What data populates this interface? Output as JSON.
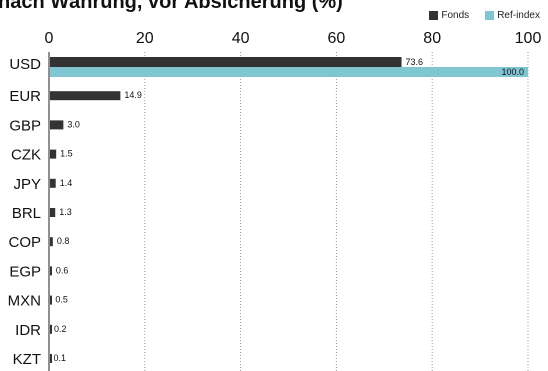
{
  "title": "nach Währung, vor Absicherung (%)",
  "colors": {
    "fonds": "#333333",
    "ref": "#7fc6d2",
    "grid": "#999999"
  },
  "chart_data": {
    "type": "bar",
    "orientation": "horizontal",
    "title": "nach Währung, vor Absicherung (%)",
    "xlim": [
      0,
      100
    ],
    "xticks": [
      0,
      20,
      40,
      60,
      80,
      100
    ],
    "grid": "vertical dotted",
    "legend_position": "top-right",
    "categories": [
      "USD",
      "EUR",
      "GBP",
      "CZK",
      "JPY",
      "BRL",
      "COP",
      "EGP",
      "MXN",
      "IDR",
      "KZT"
    ],
    "series": [
      {
        "name": "Fonds",
        "values": [
          73.6,
          14.9,
          3.0,
          1.5,
          1.4,
          1.3,
          0.8,
          0.6,
          0.5,
          0.2,
          0.1
        ]
      },
      {
        "name": "Ref-index",
        "values": [
          100.0,
          null,
          null,
          null,
          null,
          null,
          null,
          null,
          null,
          null,
          null
        ]
      }
    ]
  }
}
